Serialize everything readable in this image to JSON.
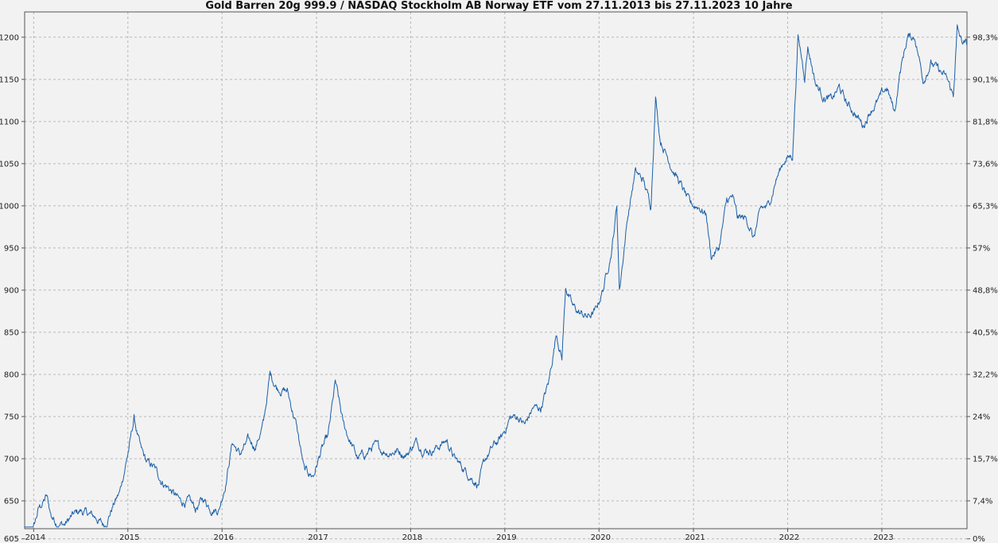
{
  "chart_data": {
    "type": "line",
    "title": "Gold Barren 20g 999.9 / NASDAQ Stockholm AB Norway ETF vom 27.11.2013 bis 27.11.2023 10 Jahre",
    "xlabel": "",
    "ylabel": "",
    "xlim": [
      "2013-11-27",
      "2023-11-27"
    ],
    "ylim": [
      617,
      1230
    ],
    "grid": true,
    "line_color": "#1a5fa8",
    "x_ticks": [
      "2014",
      "2015",
      "2016",
      "2017",
      "2018",
      "2019",
      "2020",
      "2021",
      "2022",
      "2023"
    ],
    "y_ticks_left": [
      605,
      650,
      700,
      750,
      800,
      850,
      900,
      950,
      1000,
      1050,
      1100,
      1150,
      1200
    ],
    "y_ticks_right": [
      {
        "value": 605,
        "label": "0%"
      },
      {
        "value": 650,
        "label": "7,4%"
      },
      {
        "value": 700,
        "label": "15,7%"
      },
      {
        "value": 750,
        "label": "24%"
      },
      {
        "value": 800,
        "label": "32,2%"
      },
      {
        "value": 850,
        "label": "40,5%"
      },
      {
        "value": 900,
        "label": "48,8%"
      },
      {
        "value": 950,
        "label": "57%"
      },
      {
        "value": 1000,
        "label": "65,3%"
      },
      {
        "value": 1050,
        "label": "73,6%"
      },
      {
        "value": 1100,
        "label": "81,8%"
      },
      {
        "value": 1150,
        "label": "90,1%"
      },
      {
        "value": 1200,
        "label": "98,3%"
      }
    ],
    "series": [
      {
        "x": [
          "2013-11-27",
          "2013-12-10",
          "2013-12-31",
          "2014-01-20",
          "2014-02-20",
          "2014-03-10",
          "2014-04-01",
          "2014-05-01",
          "2014-06-01",
          "2014-07-01",
          "2014-08-01",
          "2014-09-01",
          "2014-10-01",
          "2014-11-05",
          "2014-12-01",
          "2015-01-10",
          "2015-01-25",
          "2015-02-20",
          "2015-03-15",
          "2015-04-10",
          "2015-05-10",
          "2015-06-10",
          "2015-07-25",
          "2015-08-20",
          "2015-09-20",
          "2015-10-20",
          "2015-11-20",
          "2015-12-20",
          "2016-01-15",
          "2016-02-10",
          "2016-03-10",
          "2016-04-10",
          "2016-05-10",
          "2016-06-10",
          "2016-07-05",
          "2016-08-01",
          "2016-09-10",
          "2016-10-15",
          "2016-11-15",
          "2016-12-20",
          "2017-01-20",
          "2017-02-15",
          "2017-03-15",
          "2017-04-15",
          "2017-05-10",
          "2017-06-10",
          "2017-07-10",
          "2017-08-10",
          "2017-09-10",
          "2017-10-10",
          "2017-11-10",
          "2017-12-15",
          "2018-01-20",
          "2018-02-20",
          "2018-03-20",
          "2018-04-20",
          "2018-05-20",
          "2018-06-20",
          "2018-07-20",
          "2018-08-20",
          "2018-09-20",
          "2018-10-20",
          "2018-11-20",
          "2018-12-20",
          "2019-01-20",
          "2019-02-20",
          "2019-03-20",
          "2019-04-20",
          "2019-05-20",
          "2019-06-20",
          "2019-07-20",
          "2019-08-10",
          "2019-08-25",
          "2019-09-20",
          "2019-10-20",
          "2019-11-20",
          "2019-12-20",
          "2020-01-20",
          "2020-02-20",
          "2020-03-10",
          "2020-03-20",
          "2020-04-20",
          "2020-05-20",
          "2020-06-20",
          "2020-07-20",
          "2020-08-07",
          "2020-08-25",
          "2020-09-20",
          "2020-10-20",
          "2020-11-20",
          "2020-12-20",
          "2021-01-20",
          "2021-02-20",
          "2021-03-10",
          "2021-04-10",
          "2021-05-10",
          "2021-06-01",
          "2021-06-20",
          "2021-07-20",
          "2021-08-10",
          "2021-08-20",
          "2021-09-20",
          "2021-10-20",
          "2021-11-15",
          "2021-12-20",
          "2022-01-20",
          "2022-02-10",
          "2022-03-08",
          "2022-03-20",
          "2022-04-20",
          "2022-05-20",
          "2022-06-20",
          "2022-07-20",
          "2022-08-20",
          "2022-09-20",
          "2022-10-20",
          "2022-11-20",
          "2022-12-20",
          "2023-01-20",
          "2023-02-20",
          "2023-03-10",
          "2023-04-10",
          "2023-05-10",
          "2023-06-10",
          "2023-07-10",
          "2023-08-10",
          "2023-09-10",
          "2023-10-05",
          "2023-10-20",
          "2023-11-05",
          "2023-11-27"
        ],
        "y": [
          605,
          598,
          617,
          640,
          655,
          632,
          625,
          622,
          632,
          638,
          634,
          630,
          620,
          645,
          660,
          720,
          748,
          710,
          695,
          690,
          675,
          665,
          648,
          650,
          640,
          652,
          642,
          640,
          672,
          720,
          705,
          720,
          715,
          742,
          800,
          785,
          780,
          740,
          685,
          680,
          710,
          725,
          790,
          740,
          722,
          700,
          705,
          715,
          710,
          708,
          710,
          705,
          720,
          712,
          710,
          715,
          722,
          700,
          690,
          680,
          670,
          700,
          715,
          725,
          748,
          750,
          740,
          760,
          760,
          790,
          850,
          820,
          905,
          880,
          872,
          868,
          875,
          905,
          950,
          1000,
          900,
          985,
          1040,
          1030,
          1000,
          1130,
          1080,
          1060,
          1040,
          1020,
          1000,
          1000,
          990,
          940,
          950,
          1005,
          1010,
          985,
          985,
          975,
          960,
          995,
          1000,
          1030,
          1055,
          1060,
          1200,
          1155,
          1190,
          1145,
          1130,
          1125,
          1140,
          1120,
          1110,
          1095,
          1115,
          1125,
          1140,
          1110,
          1155,
          1200,
          1200,
          1150,
          1170,
          1160,
          1150,
          1130,
          1210,
          1195,
          1190
        ]
      }
    ]
  }
}
